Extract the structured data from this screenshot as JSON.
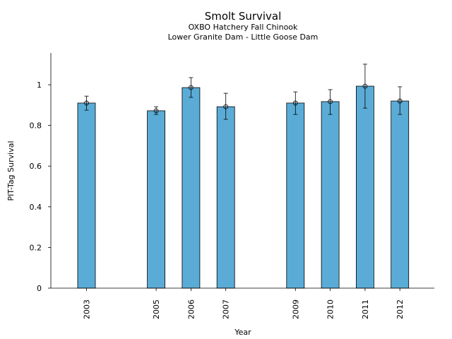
{
  "chart_data": {
    "type": "bar",
    "title": "Smolt Survival",
    "subtitle_lines": [
      "OXBO Hatchery Fall Chinook",
      "Lower Granite Dam - Little Goose Dam"
    ],
    "xlabel": "Year",
    "ylabel": "PIT-Tag Survival",
    "ylim": [
      0,
      1.15
    ],
    "yticks": [
      0,
      0.2,
      0.4,
      0.6,
      0.8,
      1
    ],
    "ytick_labels": [
      "0",
      "0.2",
      "0.4",
      "0.6",
      "0.8",
      "1"
    ],
    "xlim": [
      2002,
      2013
    ],
    "categories": [
      "2003",
      "2005",
      "2006",
      "2007",
      "2009",
      "2010",
      "2011",
      "2012"
    ],
    "x": [
      2003,
      2005,
      2006,
      2007,
      2009,
      2010,
      2011,
      2012
    ],
    "values": [
      0.91,
      0.872,
      0.986,
      0.892,
      0.91,
      0.917,
      0.993,
      0.92
    ],
    "error_low": [
      0.875,
      0.854,
      0.938,
      0.83,
      0.854,
      0.854,
      0.885,
      0.854
    ],
    "error_high": [
      0.944,
      0.892,
      1.035,
      0.958,
      0.965,
      0.976,
      1.101,
      0.99
    ],
    "bar_color": "#5aacd6",
    "grid": false,
    "legend": "none"
  }
}
